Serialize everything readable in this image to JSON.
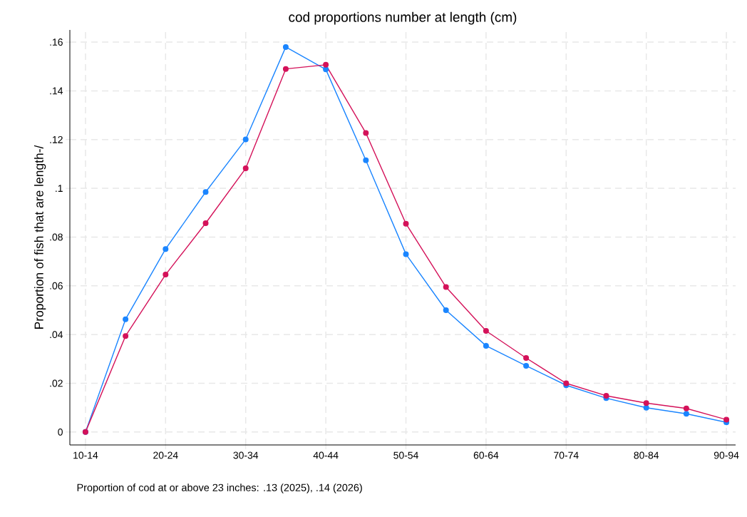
{
  "chart_data": {
    "type": "line",
    "title": "cod proportions number at length (cm)",
    "ylabel": "Proportion of fish that are length-/",
    "categories": [
      "10-14",
      null,
      "20-24",
      null,
      "30-34",
      null,
      "40-44",
      null,
      "50-54",
      null,
      "60-64",
      null,
      "70-74",
      null,
      "80-84",
      null,
      "90-94"
    ],
    "series": [
      {
        "color": "#1a85ff",
        "values": [
          0,
          0.0463,
          0.0751,
          0.0985,
          0.1201,
          0.158,
          0.1488,
          0.1115,
          0.073,
          0.05,
          0.0354,
          0.0272,
          0.0192,
          0.0139,
          0.01,
          0.0075,
          0.004
        ]
      },
      {
        "color": "#d41159",
        "values": [
          0,
          0.0394,
          0.0646,
          0.0857,
          0.1082,
          0.149,
          0.1507,
          0.1227,
          0.0855,
          0.0595,
          0.0415,
          0.0304,
          0.02,
          0.0149,
          0.0119,
          0.0097,
          0.0051
        ]
      }
    ],
    "yticks": [
      {
        "value": 0,
        "label": "0"
      },
      {
        "value": 0.02,
        "label": ".02"
      },
      {
        "value": 0.04,
        "label": ".04"
      },
      {
        "value": 0.06,
        "label": ".06"
      },
      {
        "value": 0.08,
        "label": ".08"
      },
      {
        "value": 0.1,
        "label": ".1"
      },
      {
        "value": 0.12,
        "label": ".12"
      },
      {
        "value": 0.14,
        "label": ".14"
      },
      {
        "value": 0.16,
        "label": ".16"
      }
    ],
    "ylim": [
      -0.0053,
      0.165
    ],
    "grid": true,
    "marker": "circle",
    "line_style": "solid",
    "annotations": [
      "Proportion of cod at or above 23 inches:  .13 (2025), .14 (2026)"
    ]
  }
}
